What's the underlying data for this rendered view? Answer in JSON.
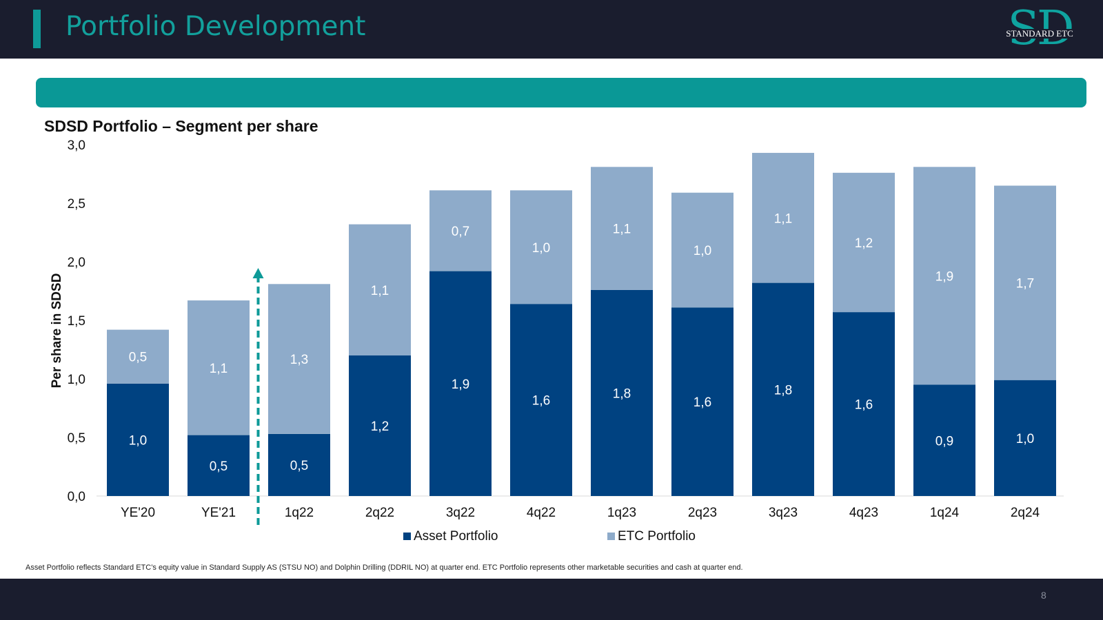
{
  "header": {
    "title": "Portfolio Development",
    "logo_mark": "SD",
    "logo_text": "STANDARD ETC"
  },
  "colors": {
    "header_bg": "#1a1d2e",
    "accent": "#0e9a98",
    "asset": "#004281",
    "etc": "#8eabca"
  },
  "footnote": "Asset Portfolio reflects Standard ETC’s equity value in Standard Supply AS (STSU NO) and Dolphin Drilling (DDRIL NO) at quarter end. ETC Portfolio represents other marketable securities and cash at quarter end.",
  "page_number": "8",
  "chart_data": {
    "type": "bar",
    "stacked": true,
    "title": "SDSD Portfolio – Segment per share",
    "xlabel": "",
    "ylabel": "Per share in SDSD",
    "ylim": [
      0,
      3.0
    ],
    "ytick_values": [
      0,
      0.5,
      1.0,
      1.5,
      2.0,
      2.5,
      3.0
    ],
    "yticks": [
      "0,0",
      "0,5",
      "1,0",
      "1,5",
      "2,0",
      "2,5",
      "3,0"
    ],
    "categories": [
      "YE'20",
      "YE'21",
      "1q22",
      "2q22",
      "3q22",
      "4q22",
      "1q23",
      "2q23",
      "3q23",
      "4q23",
      "1q24",
      "2q24"
    ],
    "series": [
      {
        "name": "Asset Portfolio",
        "color": "#004281",
        "values": [
          0.96,
          0.52,
          0.53,
          1.2,
          1.92,
          1.64,
          1.76,
          1.61,
          1.82,
          1.57,
          0.95,
          0.99
        ],
        "labels": [
          "1,0",
          "0,5",
          "0,5",
          "1,2",
          "1,9",
          "1,6",
          "1,8",
          "1,6",
          "1,8",
          "1,6",
          "0,9",
          "1,0"
        ]
      },
      {
        "name": "ETC Portfolio",
        "color": "#8eabca",
        "values": [
          0.46,
          1.15,
          1.28,
          1.12,
          0.69,
          0.97,
          1.05,
          0.98,
          1.11,
          1.19,
          1.86,
          1.66
        ],
        "labels": [
          "0,5",
          "1,1",
          "1,3",
          "1,1",
          "0,7",
          "1,0",
          "1,1",
          "1,0",
          "1,1",
          "1,2",
          "1,9",
          "1,7"
        ]
      }
    ],
    "annotation": {
      "type": "dashed-arrow",
      "after_category": "YE'21",
      "color": "#0e9a98"
    },
    "legend_position": "bottom-center"
  }
}
